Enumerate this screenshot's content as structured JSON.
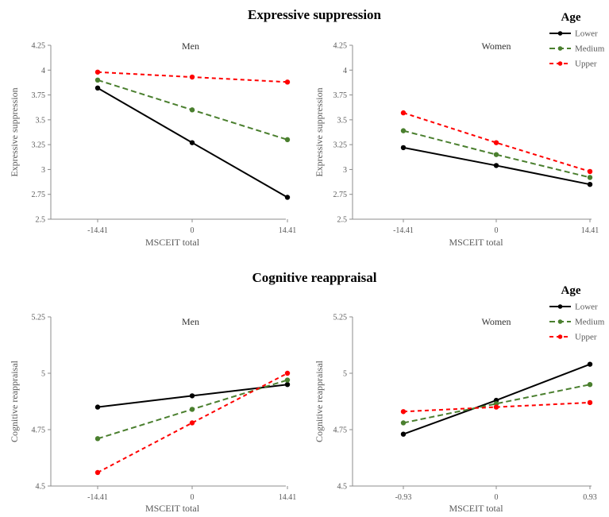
{
  "colors": {
    "lower": "#000000",
    "medium": "#4a7f2e",
    "upper": "#ff0000",
    "axis": "#8c8c8c"
  },
  "sections": [
    {
      "title": "Expressive suppression",
      "legend": {
        "title": "Age",
        "items": [
          {
            "label": "Lower",
            "series": "lower"
          },
          {
            "label": "Medium",
            "series": "medium"
          },
          {
            "label": "Upper",
            "series": "upper"
          }
        ]
      }
    },
    {
      "title": "Cognitive reappraisal",
      "legend": {
        "title": "Age",
        "items": [
          {
            "label": "Lower",
            "series": "lower"
          },
          {
            "label": "Medium",
            "series": "medium"
          },
          {
            "label": "Upper",
            "series": "upper"
          }
        ]
      }
    }
  ],
  "chart_data": [
    {
      "type": "line",
      "title": "Men",
      "xlabel": "MSCEIT total",
      "ylabel": "Expressive suppression",
      "x": [
        "-14.41",
        "0",
        "14.41"
      ],
      "ylim": [
        2.5,
        4.25
      ],
      "yticks": [
        "2.5",
        "2.75",
        "3",
        "3.25",
        "3.5",
        "3.75",
        "4",
        "4.25"
      ],
      "series": [
        {
          "name": "Lower",
          "key": "lower",
          "values": [
            3.82,
            3.27,
            2.72
          ]
        },
        {
          "name": "Medium",
          "key": "medium",
          "values": [
            3.9,
            3.6,
            3.3
          ]
        },
        {
          "name": "Upper",
          "key": "upper",
          "values": [
            3.98,
            3.93,
            3.88
          ]
        }
      ]
    },
    {
      "type": "line",
      "title": "Women",
      "xlabel": "MSCEIT total",
      "ylabel": "Expressive suppression",
      "x": [
        "-14.41",
        "0",
        "14.41"
      ],
      "ylim": [
        2.5,
        4.25
      ],
      "yticks": [
        "2.5",
        "2.75",
        "3",
        "3.25",
        "3.5",
        "3.75",
        "4",
        "4.25"
      ],
      "series": [
        {
          "name": "Lower",
          "key": "lower",
          "values": [
            3.22,
            3.04,
            2.85
          ]
        },
        {
          "name": "Medium",
          "key": "medium",
          "values": [
            3.39,
            3.15,
            2.92
          ]
        },
        {
          "name": "Upper",
          "key": "upper",
          "values": [
            3.57,
            3.27,
            2.98
          ]
        }
      ]
    },
    {
      "type": "line",
      "title": "Men",
      "xlabel": "MSCEIT total",
      "ylabel": "Cognitive reappraisal",
      "x": [
        "-14.41",
        "0",
        "14.41"
      ],
      "ylim": [
        4.5,
        5.25
      ],
      "yticks": [
        "4.5",
        "4.75",
        "5",
        "5.25"
      ],
      "series": [
        {
          "name": "Lower",
          "key": "lower",
          "values": [
            4.85,
            4.9,
            4.95
          ]
        },
        {
          "name": "Medium",
          "key": "medium",
          "values": [
            4.71,
            4.84,
            4.97
          ]
        },
        {
          "name": "Upper",
          "key": "upper",
          "values": [
            4.56,
            4.78,
            5.0
          ]
        }
      ]
    },
    {
      "type": "line",
      "title": "Women",
      "xlabel": "MSCEIT total",
      "ylabel": "Cognitive reappraisal",
      "x": [
        "-0.93",
        "0",
        "0.93"
      ],
      "ylim": [
        4.5,
        5.25
      ],
      "yticks": [
        "4.5",
        "4.75",
        "5",
        "5.25"
      ],
      "series": [
        {
          "name": "Lower",
          "key": "lower",
          "values": [
            4.73,
            4.88,
            5.04
          ]
        },
        {
          "name": "Medium",
          "key": "medium",
          "values": [
            4.78,
            4.865,
            4.95
          ]
        },
        {
          "name": "Upper",
          "key": "upper",
          "values": [
            4.83,
            4.85,
            4.87
          ]
        }
      ]
    }
  ]
}
